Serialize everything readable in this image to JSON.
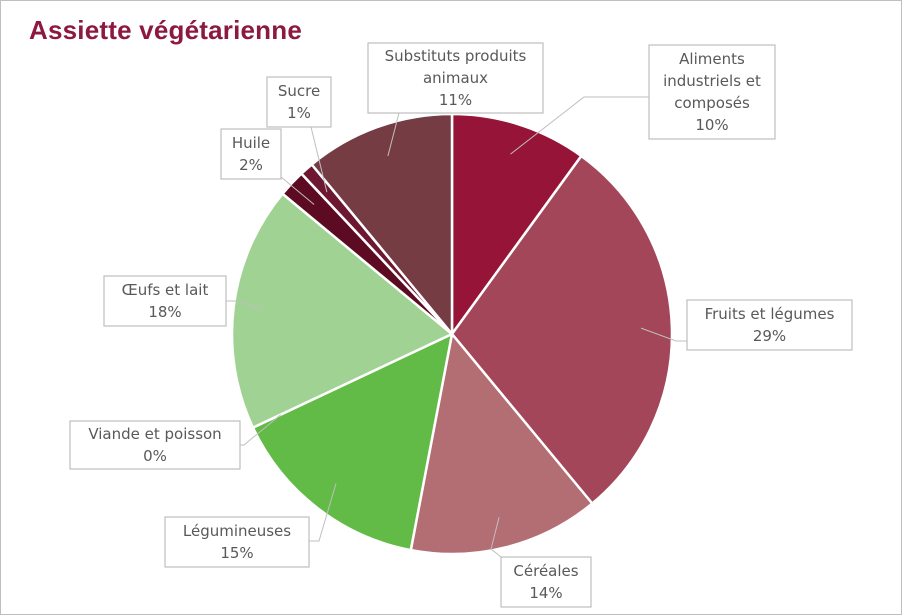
{
  "title": "Assiette végétarienne",
  "chart_data": {
    "type": "pie",
    "title": "Assiette végétarienne",
    "unit": "%",
    "slices": [
      {
        "label": "Aliments industriels et composés",
        "value": 10,
        "color": "#961438"
      },
      {
        "label": "Fruits et légumes",
        "value": 29,
        "color": "#a34659"
      },
      {
        "label": "Céréales",
        "value": 14,
        "color": "#b36e74"
      },
      {
        "label": "Légumineuses",
        "value": 15,
        "color": "#63bb47"
      },
      {
        "label": "Viande et poisson",
        "value": 0,
        "color": "#4d9e3a"
      },
      {
        "label": "Œufs et lait",
        "value": 18,
        "color": "#a0d293"
      },
      {
        "label": "Huile",
        "value": 2,
        "color": "#5c0b22"
      },
      {
        "label": "Sucre",
        "value": 1,
        "color": "#6e1730"
      },
      {
        "label": "Substituts produits animaux",
        "value": 11,
        "color": "#763c43"
      }
    ],
    "value_labels": [
      "10%",
      "29%",
      "14%",
      "15%",
      "0%",
      "18%",
      "2%",
      "1%",
      "11%"
    ],
    "label_lines": [
      [
        "Aliments",
        "industriels et",
        "composés"
      ],
      [
        "Fruits et légumes"
      ],
      [
        "Céréales"
      ],
      [
        "Légumineuses"
      ],
      [
        "Viande et poisson"
      ],
      [
        "Œufs et lait"
      ],
      [
        "Huile"
      ],
      [
        "Sucre"
      ],
      [
        "Substituts produits",
        "animaux"
      ]
    ]
  }
}
